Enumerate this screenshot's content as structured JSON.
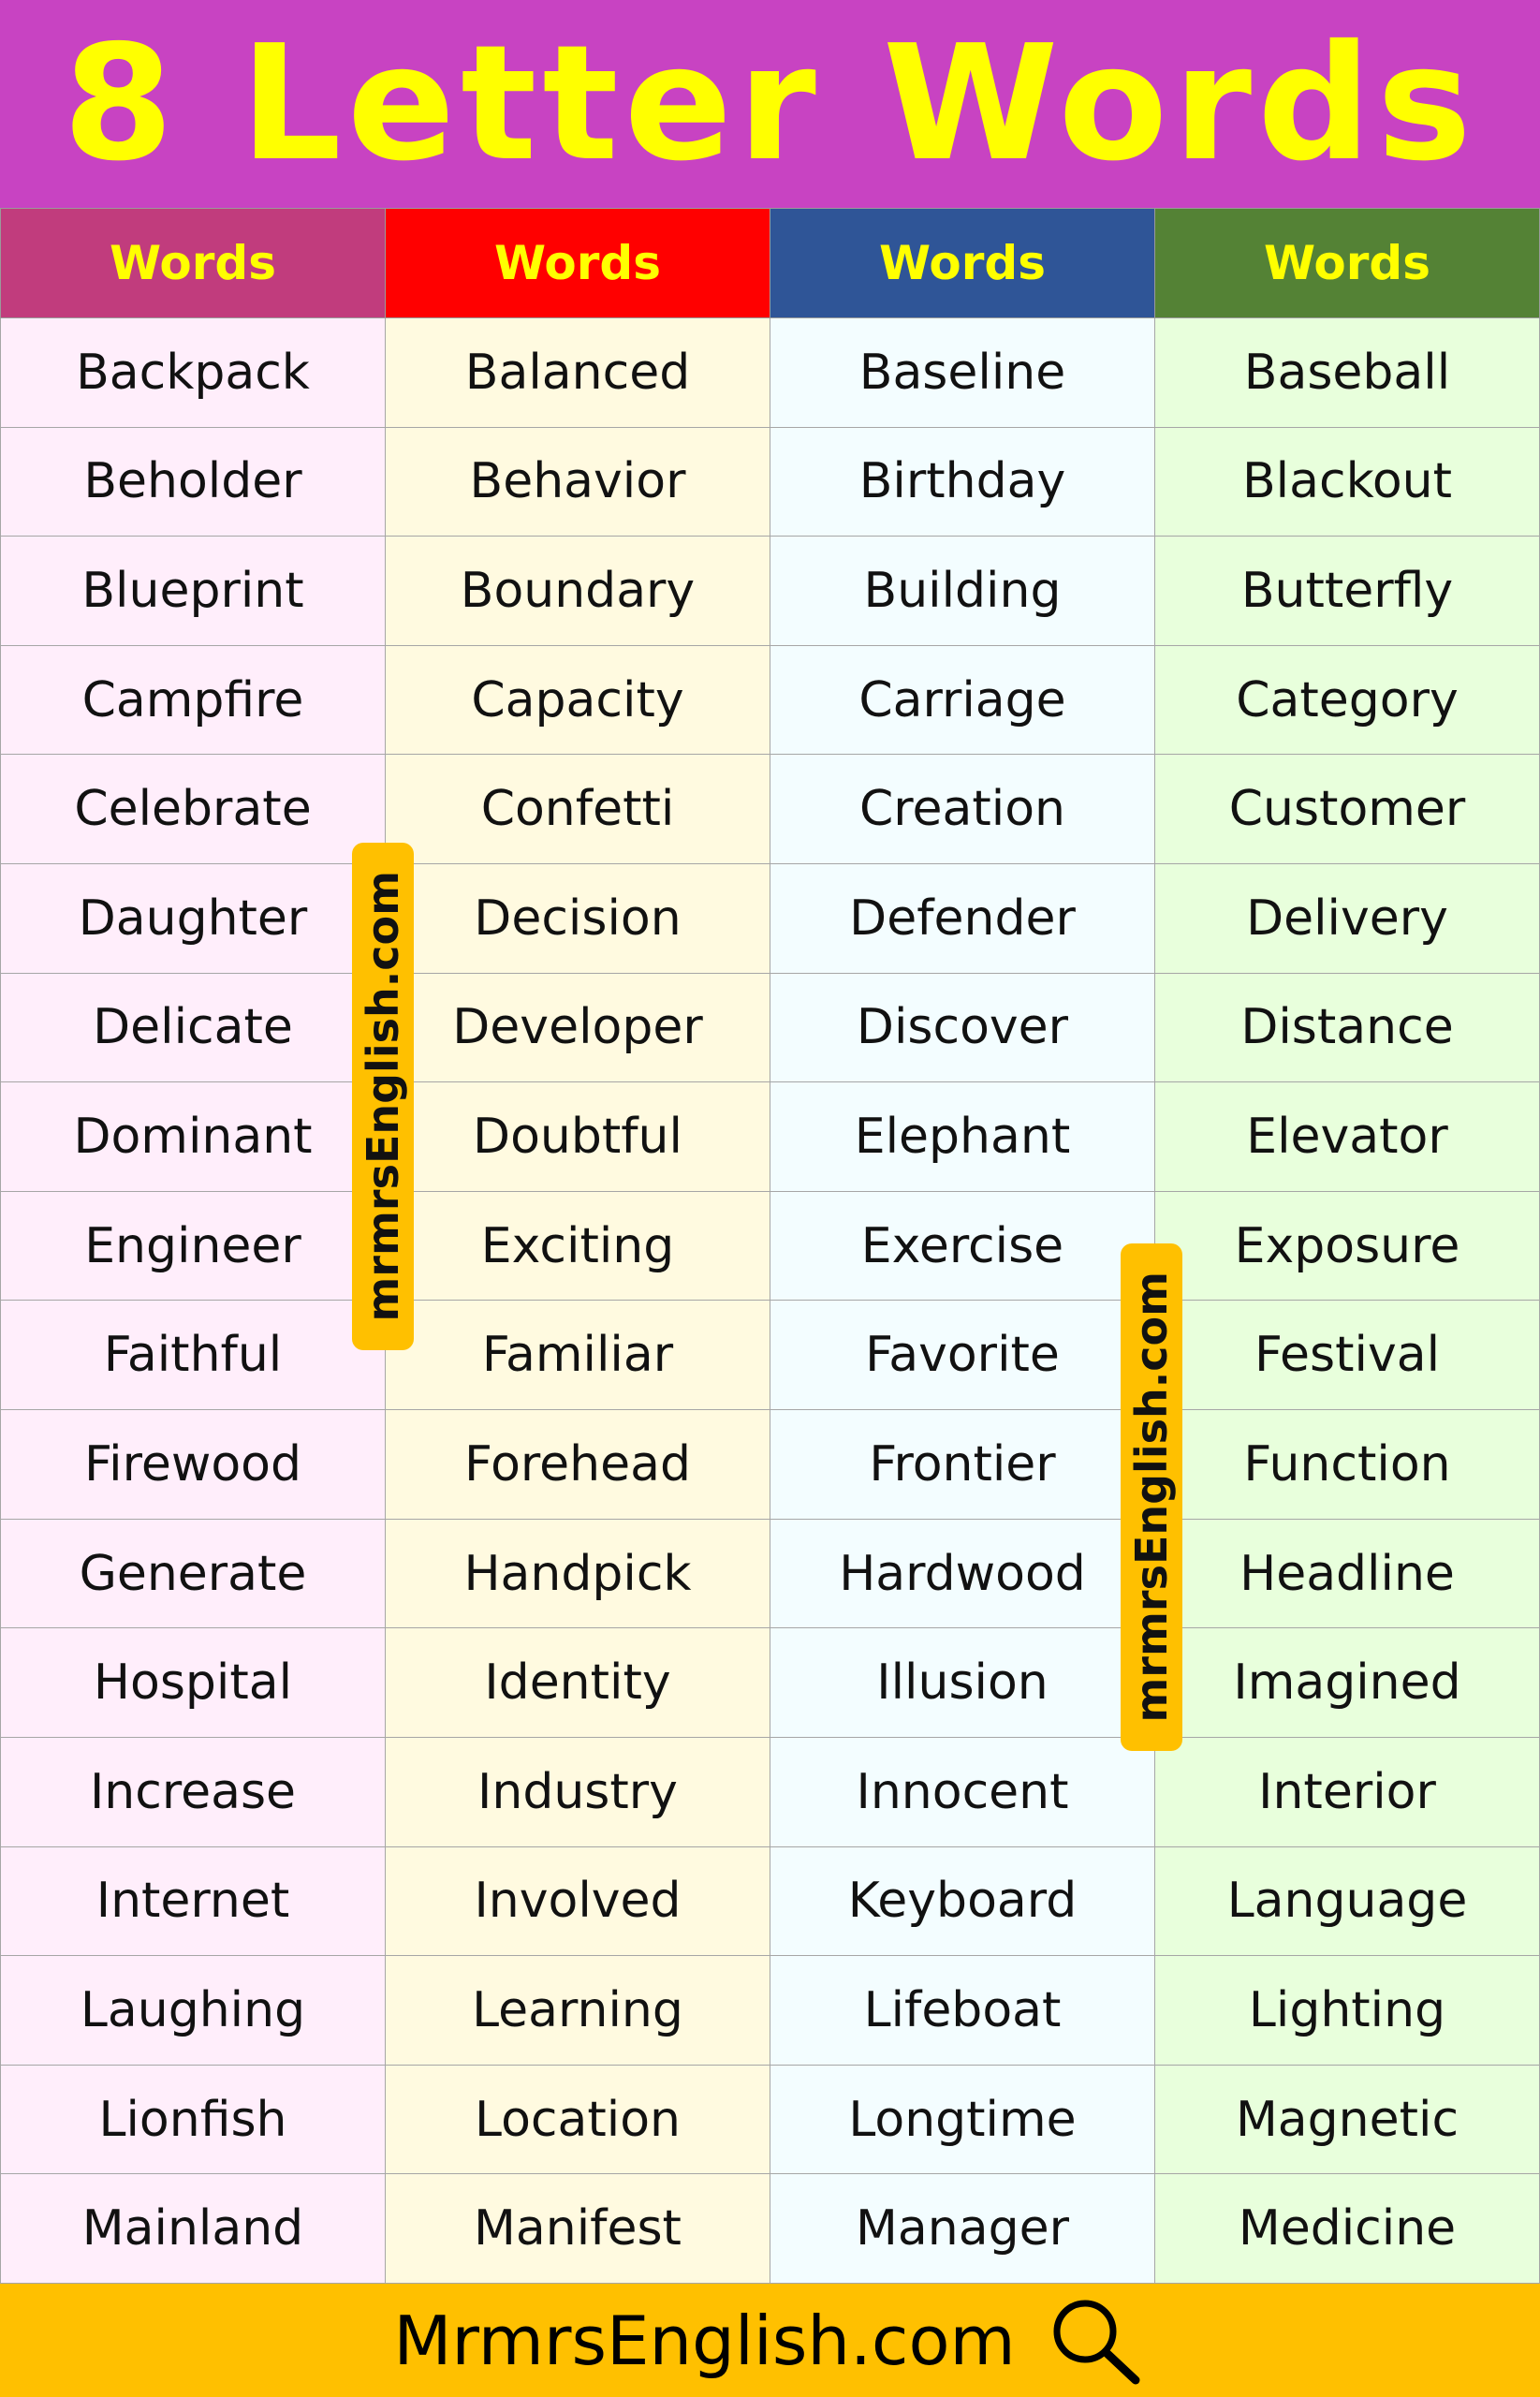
{
  "title": "8 Letter Words",
  "table": {
    "headers": [
      "Words",
      "Words",
      "Words",
      "Words"
    ],
    "header_colors": [
      "#c13c7d",
      "#ff0000",
      "#2f5597",
      "#548235"
    ],
    "column_colors": [
      "#ffeefb",
      "#fffae0",
      "#f3fdff",
      "#e8ffdc"
    ],
    "columns": [
      [
        "Backpack",
        "Beholder",
        "Blueprint",
        "Campfire",
        "Celebrate",
        "Daughter",
        "Delicate",
        "Dominant",
        "Engineer",
        "Faithful",
        "Firewood",
        "Generate",
        "Hospital",
        "Increase",
        "Internet",
        "Laughing",
        "Lionfish",
        "Mainland"
      ],
      [
        "Balanced",
        "Behavior",
        "Boundary",
        "Capacity",
        "Confetti",
        "Decision",
        "Developer",
        "Doubtful",
        "Exciting",
        "Familiar",
        "Forehead",
        "Handpick",
        "Identity",
        "Industry",
        "Involved",
        "Learning",
        "Location",
        "Manifest"
      ],
      [
        "Baseline",
        "Birthday",
        "Building",
        "Carriage",
        "Creation",
        "Defender",
        "Discover",
        "Elephant",
        "Exercise",
        "Favorite",
        "Frontier",
        "Hardwood",
        "Illusion",
        "Innocent",
        "Keyboard",
        "Lifeboat",
        "Longtime",
        "Manager"
      ],
      [
        "Baseball",
        "Blackout",
        "Butterfly",
        "Category",
        "Customer",
        "Delivery",
        "Distance",
        "Elevator",
        "Exposure",
        "Festival",
        "Function",
        "Headline",
        "Imagined",
        "Interior",
        "Language",
        "Lighting",
        "Magnetic",
        "Medicine"
      ]
    ]
  },
  "watermarks": [
    "mrmrsEnglish.com",
    "mrmrsEnglish.com"
  ],
  "footer": {
    "text": "MrmrsEnglish.com",
    "icon": "search-icon"
  }
}
